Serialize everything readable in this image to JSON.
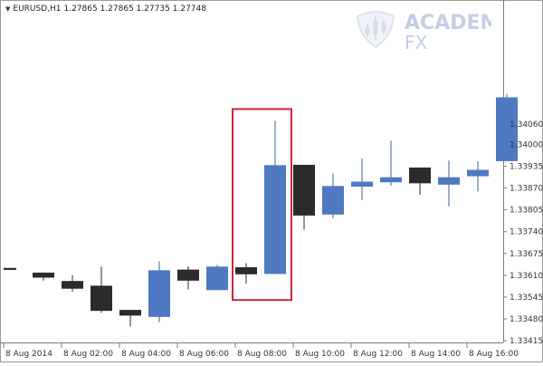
{
  "header": {
    "symbol_tf": "EURUSD,H1",
    "ohlc": "1.27865 1.27865 1.27735 1.27748"
  },
  "logo": {
    "line1": "ACADEM",
    "line2": "FX"
  },
  "colors": {
    "bull": "#4f79c0",
    "bear": "#2b2b2b",
    "wick": "#3c5d9c",
    "highlight": "#c8283c",
    "axis": "#7a7a7a"
  },
  "chart_data": {
    "type": "candlestick",
    "title": "",
    "ylim": [
      1.3341,
      1.3443
    ],
    "y_ticks": [
      "1.34060",
      "1.34000",
      "1.33935",
      "1.33870",
      "1.33805",
      "1.33740",
      "1.33675",
      "1.33610",
      "1.33545",
      "1.33480",
      "1.33415"
    ],
    "x_ticks": [
      "8 Aug 2014",
      "8 Aug 02:00",
      "8 Aug 04:00",
      "8 Aug 06:00",
      "8 Aug 08:00",
      "8 Aug 10:00",
      "8 Aug 12:00",
      "8 Aug 14:00",
      "8 Aug 16:00"
    ],
    "candles": [
      {
        "open": 1.33632,
        "high": 1.33632,
        "low": 1.33626,
        "close": 1.33626
      },
      {
        "open": 1.33618,
        "high": 1.33618,
        "low": 1.33594,
        "close": 1.33603
      },
      {
        "open": 1.33593,
        "high": 1.3361,
        "low": 1.33561,
        "close": 1.3357
      },
      {
        "open": 1.33579,
        "high": 1.33636,
        "low": 1.33498,
        "close": 1.33504
      },
      {
        "open": 1.33507,
        "high": 1.33507,
        "low": 1.33458,
        "close": 1.3349
      },
      {
        "open": 1.33486,
        "high": 1.33652,
        "low": 1.3347,
        "close": 1.33625
      },
      {
        "open": 1.33627,
        "high": 1.33637,
        "low": 1.33568,
        "close": 1.33594
      },
      {
        "open": 1.33566,
        "high": 1.33641,
        "low": 1.33566,
        "close": 1.33636
      },
      {
        "open": 1.33634,
        "high": 1.33646,
        "low": 1.33585,
        "close": 1.33613
      },
      {
        "open": 1.33614,
        "high": 1.3407,
        "low": 1.33614,
        "close": 1.33938
      },
      {
        "open": 1.33939,
        "high": 1.33939,
        "low": 1.33746,
        "close": 1.33788
      },
      {
        "open": 1.33791,
        "high": 1.33913,
        "low": 1.3378,
        "close": 1.33876
      },
      {
        "open": 1.33874,
        "high": 1.33958,
        "low": 1.33834,
        "close": 1.33889
      },
      {
        "open": 1.33887,
        "high": 1.34011,
        "low": 1.33877,
        "close": 1.33902
      },
      {
        "open": 1.33931,
        "high": 1.33931,
        "low": 1.3385,
        "close": 1.33884
      },
      {
        "open": 1.3388,
        "high": 1.33952,
        "low": 1.33815,
        "close": 1.33902
      },
      {
        "open": 1.33905,
        "high": 1.3395,
        "low": 1.3386,
        "close": 1.33924
      },
      {
        "open": 1.3395,
        "high": 1.3415,
        "low": 1.3395,
        "close": 1.3414
      }
    ],
    "highlight": {
      "from_candle": 8,
      "to_candle": 9
    },
    "grid": false
  }
}
